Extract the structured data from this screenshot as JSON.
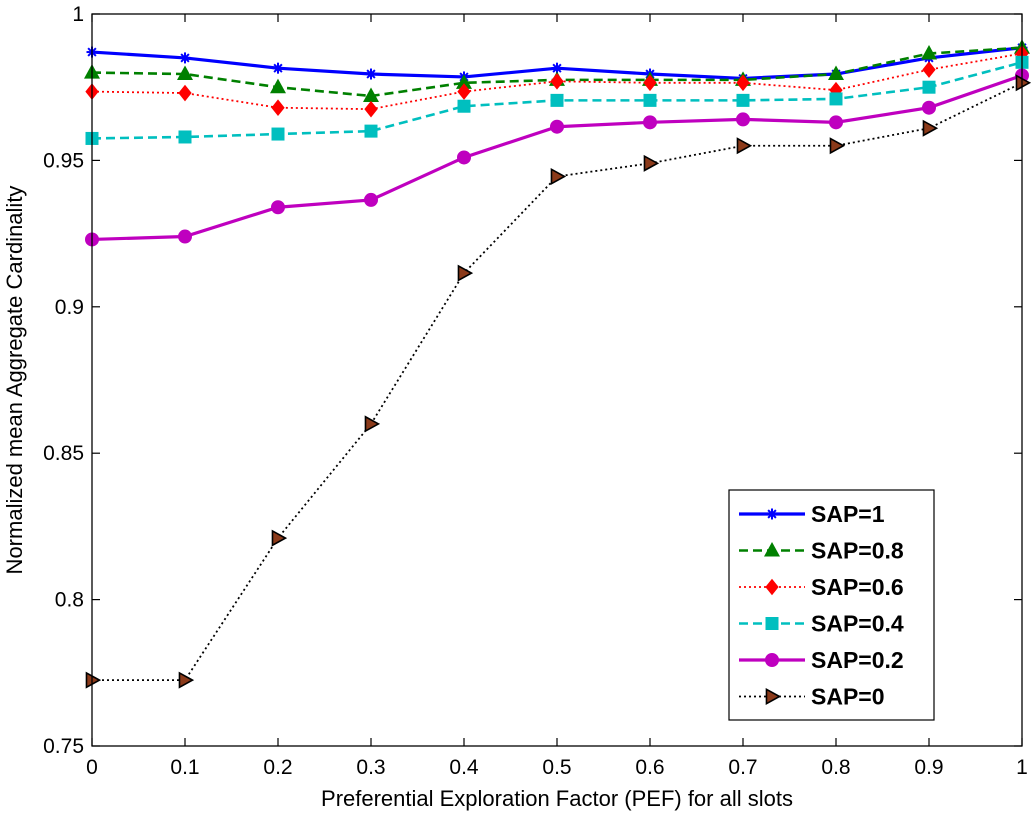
{
  "chart_data": {
    "type": "line",
    "title": "",
    "xlabel": "Preferential Exploration Factor (PEF) for all slots",
    "ylabel": "Normalized mean Aggregate Cardinality",
    "xlim": [
      0,
      1
    ],
    "ylim": [
      0.75,
      1
    ],
    "x": [
      0,
      0.1,
      0.2,
      0.3,
      0.4,
      0.5,
      0.6,
      0.7,
      0.8,
      0.9,
      1
    ],
    "xticks": [
      "0",
      "0.1",
      "0.2",
      "0.3",
      "0.4",
      "0.5",
      "0.6",
      "0.7",
      "0.8",
      "0.9",
      "1"
    ],
    "yticks": [
      "0.75",
      "0.8",
      "0.85",
      "0.9",
      "0.95",
      "1"
    ],
    "grid": false,
    "legend_position": "bottom-right",
    "series": [
      {
        "name": "SAP=1",
        "color": "#0000ff",
        "marker": "star",
        "line_style": "solid",
        "values": [
          0.987,
          0.985,
          0.9815,
          0.9795,
          0.9785,
          0.9815,
          0.9795,
          0.978,
          0.9795,
          0.985,
          0.9885
        ]
      },
      {
        "name": "SAP=0.8",
        "color": "#008000",
        "marker": "triangle-up",
        "line_style": "dashed",
        "values": [
          0.98,
          0.9795,
          0.975,
          0.972,
          0.9765,
          0.9775,
          0.9775,
          0.9775,
          0.9795,
          0.9865,
          0.9885
        ]
      },
      {
        "name": "SAP=0.6",
        "color": "#ff0000",
        "marker": "diamond",
        "line_style": "dotted",
        "values": [
          0.9735,
          0.973,
          0.968,
          0.9675,
          0.9735,
          0.977,
          0.9765,
          0.9765,
          0.974,
          0.981,
          0.9865
        ]
      },
      {
        "name": "SAP=0.4",
        "color": "#00bfbf",
        "marker": "square",
        "line_style": "dashed",
        "values": [
          0.9575,
          0.958,
          0.959,
          0.96,
          0.9685,
          0.9705,
          0.9705,
          0.9705,
          0.971,
          0.975,
          0.9835
        ]
      },
      {
        "name": "SAP=0.2",
        "color": "#bf00bf",
        "marker": "circle",
        "line_style": "solid",
        "values": [
          0.923,
          0.924,
          0.934,
          0.9365,
          0.951,
          0.9615,
          0.963,
          0.964,
          0.963,
          0.968,
          0.979
        ]
      },
      {
        "name": "SAP=0",
        "color": "#000000",
        "marker_fill": "#8b3a1a",
        "marker": "triangle-right",
        "line_style": "dotted",
        "values": [
          0.7725,
          0.7725,
          0.821,
          0.86,
          0.9115,
          0.9445,
          0.949,
          0.955,
          0.955,
          0.961,
          0.9765
        ]
      }
    ]
  }
}
